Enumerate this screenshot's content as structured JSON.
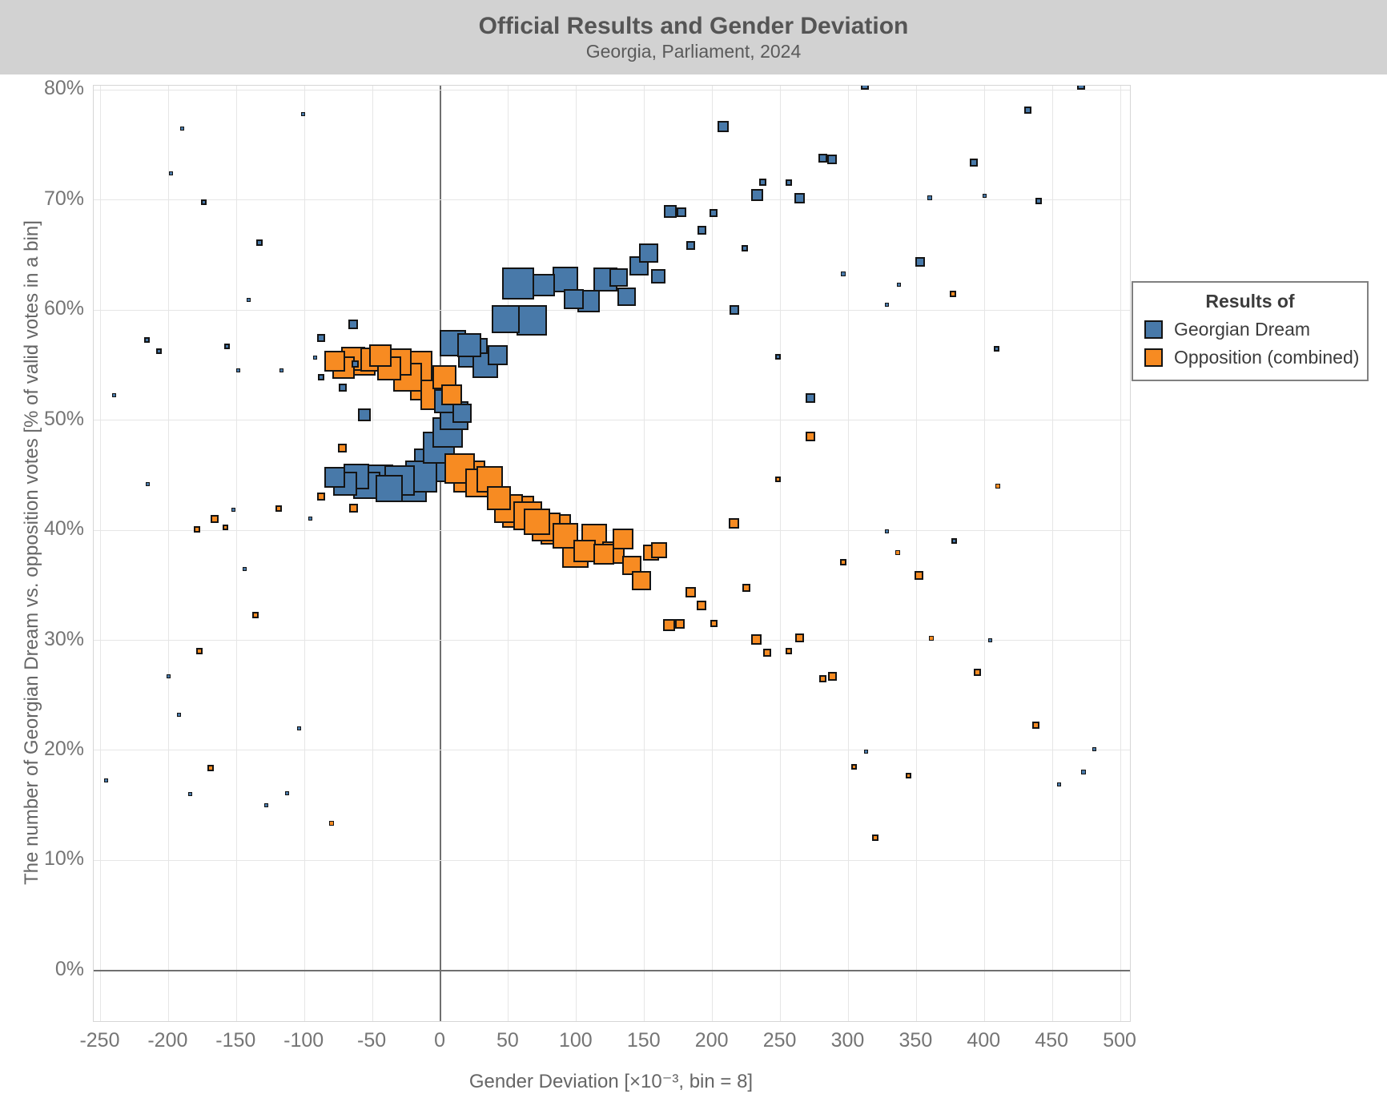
{
  "header": {
    "title": "Official Results and Gender Deviation",
    "subtitle": "Georgia, Parliament, 2024"
  },
  "legend": {
    "title": "Results of",
    "items": [
      {
        "label": "Georgian Dream",
        "color": "#4879a9"
      },
      {
        "label": "Opposition (combined)",
        "color": "#f78b22"
      }
    ]
  },
  "axes": {
    "x": {
      "label": "Gender Deviation [×10⁻³, bin = 8]",
      "ticks": [
        -250,
        -200,
        -150,
        -100,
        -50,
        0,
        50,
        100,
        150,
        200,
        250,
        300,
        350,
        400,
        450,
        500
      ]
    },
    "y": {
      "label": "The number of Georgian Dream vs. opposition votes [% of valid votes in a bin]",
      "ticks": [
        0,
        10,
        20,
        30,
        40,
        50,
        60,
        70,
        80
      ],
      "tick_suffix": "%"
    }
  },
  "colors": {
    "blue": "#4879a9",
    "orange": "#f78b22",
    "point_border": "#141414",
    "gridline": "#e6e6e6",
    "zero_line": "#6f6f6f",
    "header_band": "#d2d2d2"
  },
  "chart_data": {
    "type": "scatter",
    "title": "Official Results and Gender Deviation",
    "subtitle": "Georgia, Parliament, 2024",
    "xlabel": "Gender Deviation [×10⁻³, bin = 8]",
    "ylabel": "The number of Georgian Dream vs. opposition votes [% of valid votes in a bin]",
    "xlim": [
      -255,
      507
    ],
    "ylim": [
      -4.6,
      80.4
    ],
    "grid": true,
    "legend_position": "right",
    "marker": "square",
    "point_format": [
      "x_gender_deviation",
      "y_percent",
      "marker_size_px"
    ],
    "series": [
      {
        "name": "Georgian Dream",
        "color": "#4879a9",
        "points": [
          [
            -78,
            44.8,
            26
          ],
          [
            -70,
            44.2,
            30
          ],
          [
            -62,
            44.9,
            32
          ],
          [
            -54,
            44.1,
            34
          ],
          [
            -46,
            44.6,
            38
          ],
          [
            -38,
            43.8,
            34
          ],
          [
            -30,
            44.5,
            38
          ],
          [
            -22,
            44.0,
            40
          ],
          [
            -14,
            44.9,
            40
          ],
          [
            -7,
            45.9,
            42
          ],
          [
            -1,
            47.5,
            40
          ],
          [
            5,
            48.9,
            38
          ],
          [
            10,
            50.4,
            36
          ],
          [
            16,
            50.6,
            24
          ],
          [
            4,
            51.7,
            30
          ],
          [
            9,
            57.0,
            33
          ],
          [
            21,
            56.8,
            30
          ],
          [
            24,
            56.1,
            37
          ],
          [
            33,
            55.0,
            32
          ],
          [
            42,
            55.9,
            25
          ],
          [
            48,
            59.2,
            35
          ],
          [
            57,
            62.4,
            40
          ],
          [
            67,
            59.1,
            38
          ],
          [
            76,
            62.3,
            28
          ],
          [
            92,
            62.8,
            32
          ],
          [
            98,
            61.0,
            25
          ],
          [
            109,
            60.8,
            28
          ],
          [
            121,
            62.8,
            30
          ],
          [
            131,
            63.0,
            23
          ],
          [
            137,
            61.2,
            23
          ],
          [
            146,
            64.0,
            24
          ],
          [
            153,
            65.2,
            24
          ],
          [
            160,
            63.1,
            18
          ],
          [
            208,
            76.7,
            14
          ],
          [
            233,
            70.5,
            15
          ],
          [
            237,
            71.6,
            9
          ],
          [
            256,
            71.6,
            8
          ],
          [
            264,
            70.2,
            13
          ],
          [
            281,
            73.8,
            11
          ],
          [
            288,
            73.7,
            12
          ],
          [
            169,
            69.0,
            16
          ],
          [
            177,
            68.9,
            12
          ],
          [
            184,
            65.9,
            11
          ],
          [
            192,
            67.3,
            11
          ],
          [
            201,
            68.8,
            10
          ],
          [
            216,
            60.0,
            12
          ],
          [
            224,
            65.6,
            8
          ],
          [
            248,
            55.8,
            7
          ],
          [
            272,
            52.0,
            12
          ],
          [
            296,
            63.3,
            6
          ],
          [
            313,
            19.9,
            5
          ],
          [
            328,
            60.5,
            5
          ],
          [
            328,
            39.9,
            5
          ],
          [
            337,
            62.3,
            5
          ],
          [
            353,
            64.4,
            12
          ],
          [
            360,
            70.2,
            6
          ],
          [
            378,
            39.0,
            7
          ],
          [
            392,
            73.4,
            10
          ],
          [
            400,
            70.4,
            5
          ],
          [
            404,
            30.0,
            5
          ],
          [
            409,
            56.5,
            7
          ],
          [
            432,
            78.2,
            9
          ],
          [
            440,
            69.9,
            8
          ],
          [
            455,
            16.9,
            5
          ],
          [
            473,
            18.0,
            6
          ],
          [
            481,
            20.1,
            5
          ],
          [
            312,
            80.4,
            10
          ],
          [
            471,
            80.4,
            10
          ],
          [
            -246,
            17.3,
            5
          ],
          [
            -240,
            52.3,
            5
          ],
          [
            -216,
            57.3,
            7
          ],
          [
            -215,
            44.2,
            5
          ],
          [
            -207,
            56.3,
            7
          ],
          [
            -200,
            26.7,
            5
          ],
          [
            -198,
            72.4,
            5
          ],
          [
            -192,
            23.2,
            5
          ],
          [
            -190,
            76.5,
            5
          ],
          [
            -184,
            16.0,
            5
          ],
          [
            -174,
            69.8,
            7
          ],
          [
            -157,
            56.7,
            7
          ],
          [
            -152,
            41.9,
            5
          ],
          [
            -149,
            54.5,
            5
          ],
          [
            -144,
            36.5,
            5
          ],
          [
            -141,
            60.9,
            5
          ],
          [
            -133,
            66.1,
            8
          ],
          [
            -128,
            15.0,
            5
          ],
          [
            -117,
            54.5,
            5
          ],
          [
            -113,
            16.1,
            5
          ],
          [
            -104,
            22.0,
            5
          ],
          [
            -101,
            77.8,
            5
          ],
          [
            -96,
            41.1,
            5
          ],
          [
            -92,
            55.7,
            5
          ],
          [
            -88,
            57.5,
            10
          ],
          [
            -88,
            53.9,
            8
          ],
          [
            -72,
            53.0,
            10
          ],
          [
            -64,
            58.7,
            12
          ],
          [
            -63,
            55.1,
            9
          ],
          [
            -56,
            50.5,
            16
          ]
        ]
      },
      {
        "name": "Opposition (combined)",
        "color": "#f78b22",
        "points": [
          [
            -78,
            55.4,
            26
          ],
          [
            -71,
            54.8,
            28
          ],
          [
            -64,
            55.6,
            30
          ],
          [
            -57,
            55.2,
            32
          ],
          [
            -50,
            55.5,
            30
          ],
          [
            -44,
            55.9,
            28
          ],
          [
            -38,
            54.7,
            30
          ],
          [
            -31,
            55.3,
            34
          ],
          [
            -24,
            53.9,
            36
          ],
          [
            -17,
            54.9,
            38
          ],
          [
            -10,
            53.3,
            42
          ],
          [
            -3,
            52.4,
            40
          ],
          [
            3,
            53.9,
            30
          ],
          [
            8,
            52.3,
            26
          ],
          [
            14,
            45.6,
            38
          ],
          [
            21,
            44.9,
            40
          ],
          [
            29,
            44.3,
            36
          ],
          [
            36,
            44.6,
            33
          ],
          [
            43,
            42.9,
            30
          ],
          [
            50,
            42.0,
            36
          ],
          [
            57,
            41.7,
            40
          ],
          [
            64,
            41.3,
            36
          ],
          [
            71,
            40.8,
            33
          ],
          [
            78,
            40.3,
            36
          ],
          [
            85,
            40.1,
            38
          ],
          [
            92,
            39.5,
            32
          ],
          [
            99,
            37.8,
            33
          ],
          [
            106,
            38.1,
            28
          ],
          [
            113,
            39.4,
            32
          ],
          [
            120,
            37.8,
            26
          ],
          [
            127,
            38.0,
            28
          ],
          [
            134,
            39.2,
            26
          ],
          [
            141,
            36.8,
            24
          ],
          [
            148,
            35.4,
            24
          ],
          [
            155,
            38.0,
            20
          ],
          [
            161,
            38.2,
            20
          ],
          [
            168,
            31.4,
            15
          ],
          [
            176,
            31.5,
            12
          ],
          [
            184,
            34.4,
            13
          ],
          [
            192,
            33.2,
            12
          ],
          [
            201,
            31.5,
            9
          ],
          [
            216,
            40.6,
            13
          ],
          [
            225,
            34.8,
            10
          ],
          [
            232,
            30.1,
            13
          ],
          [
            240,
            28.9,
            10
          ],
          [
            248,
            44.6,
            7
          ],
          [
            256,
            29.0,
            8
          ],
          [
            264,
            30.2,
            11
          ],
          [
            272,
            48.5,
            12
          ],
          [
            281,
            26.5,
            9
          ],
          [
            288,
            26.7,
            11
          ],
          [
            296,
            37.1,
            8
          ],
          [
            304,
            18.5,
            7
          ],
          [
            320,
            12.1,
            8
          ],
          [
            336,
            38.0,
            6
          ],
          [
            344,
            17.7,
            7
          ],
          [
            352,
            35.9,
            11
          ],
          [
            361,
            30.2,
            6
          ],
          [
            377,
            61.5,
            8
          ],
          [
            395,
            27.1,
            9
          ],
          [
            410,
            44.0,
            6
          ],
          [
            438,
            22.3,
            9
          ],
          [
            -179,
            40.1,
            8
          ],
          [
            -177,
            29.0,
            8
          ],
          [
            -169,
            18.4,
            8
          ],
          [
            -166,
            41.0,
            10
          ],
          [
            -158,
            40.3,
            7
          ],
          [
            -136,
            32.3,
            8
          ],
          [
            -119,
            42.0,
            8
          ],
          [
            -88,
            43.1,
            10
          ],
          [
            -80,
            13.4,
            6
          ],
          [
            -72,
            47.5,
            11
          ],
          [
            -64,
            42.0,
            11
          ]
        ]
      }
    ]
  }
}
